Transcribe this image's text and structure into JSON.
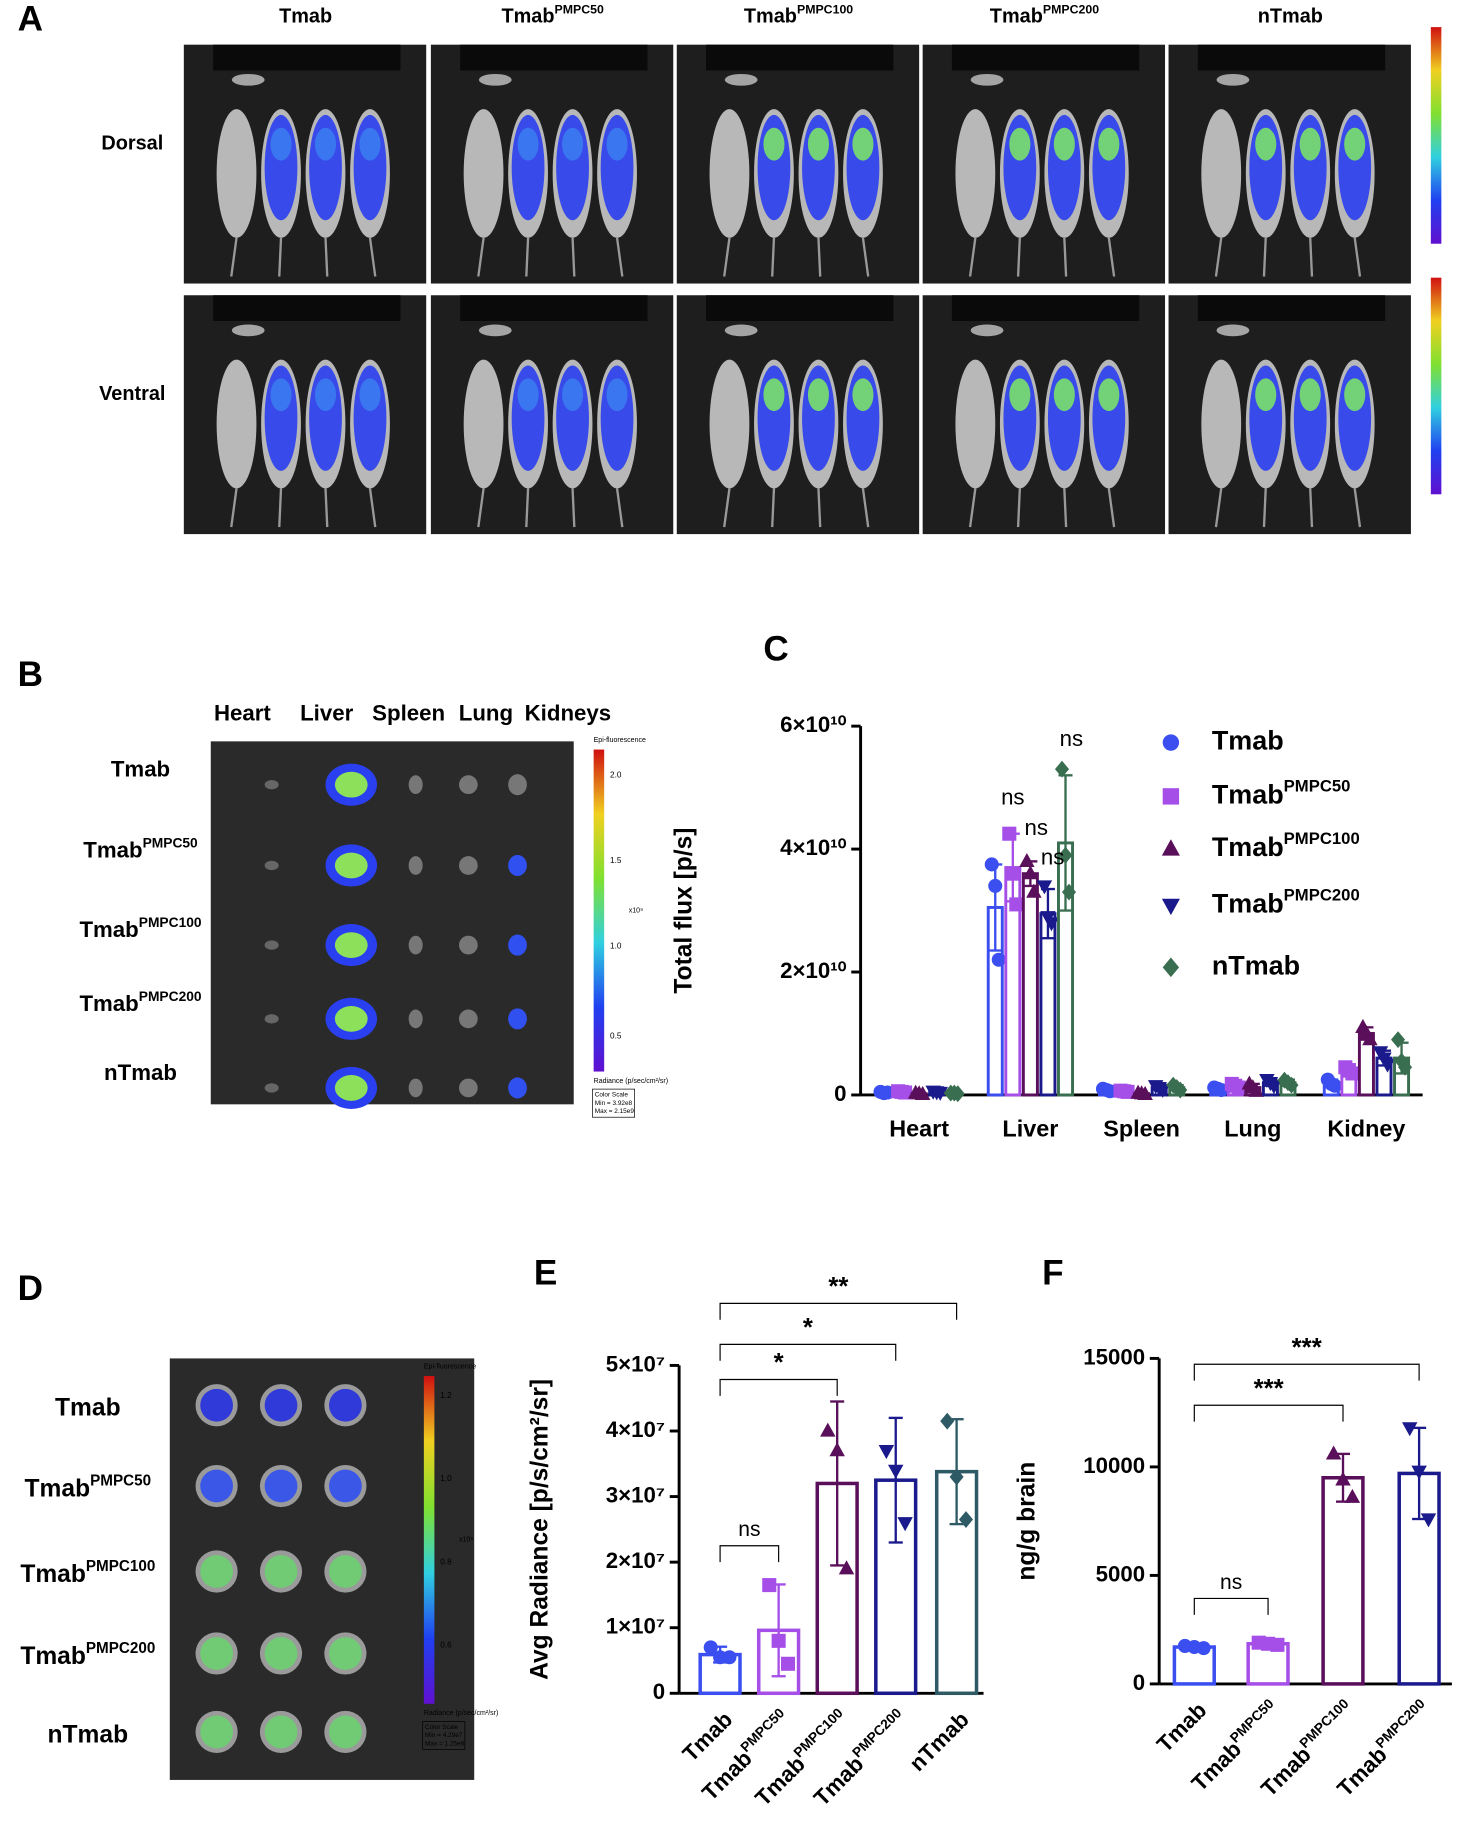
{
  "panel_labels": [
    "A",
    "B",
    "C",
    "D",
    "E",
    "F"
  ],
  "panel_a": {
    "columns": [
      [
        "Tmab"
      ],
      [
        "Tmab",
        "PMPC50"
      ],
      [
        "Tmab",
        "PMPC100"
      ],
      [
        "Tmab",
        "PMPC200"
      ],
      [
        "nTmab"
      ]
    ],
    "rows": [
      "Dorsal",
      "Ventral"
    ]
  },
  "panel_b": {
    "organs": [
      "Heart",
      "Liver",
      "Spleen",
      "Lung",
      "Kidneys"
    ],
    "rows": [
      [
        "Tmab"
      ],
      [
        "Tmab",
        "PMPC50"
      ],
      [
        "Tmab",
        "PMPC100"
      ],
      [
        "Tmab",
        "PMPC200"
      ],
      [
        "nTmab"
      ]
    ],
    "colorbar": {
      "title": "Epi-fluorescence",
      "ticks": [
        "2.0",
        "1.5",
        "1.0",
        "0.5"
      ],
      "unit": "x10⁹",
      "radiance": "Radiance (p/sec/cm²/sr)",
      "scale": [
        "Color Scale",
        "Min = 3.92e8",
        "Max = 2.15e9"
      ]
    }
  },
  "panel_d": {
    "rows": [
      [
        "Tmab"
      ],
      [
        "Tmab",
        "PMPC50"
      ],
      [
        "Tmab",
        "PMPC100"
      ],
      [
        "Tmab",
        "PMPC200"
      ],
      [
        "nTmab"
      ]
    ],
    "colorbar": {
      "title": "Epi-fluorescence",
      "ticks": [
        "1.2",
        "1.0",
        "0.8",
        "0.6"
      ],
      "unit": "x10⁸",
      "radiance": "Radiance (p/sec/cm²/sr)",
      "scale": [
        "Color Scale",
        "Min = 4.29e7",
        "Max = 1.25e8"
      ]
    }
  },
  "chart_data": [
    {
      "type": "grouped_bar",
      "categories": [
        "Heart",
        "Liver",
        "Spleen",
        "Lung",
        "Kidney"
      ],
      "ylabel": "Total flux [p/s]",
      "ylim": [
        0,
        60000000000.0
      ],
      "yticks": [
        0,
        {
          "value": 20000000000.0,
          "label": "2×10¹⁰"
        },
        {
          "value": 40000000000.0,
          "label": "4×10¹⁰"
        },
        {
          "value": 60000000000.0,
          "label": "6×10¹⁰"
        }
      ],
      "annotations": [
        "ns",
        "ns",
        "ns",
        "ns"
      ],
      "series": [
        {
          "name": [
            "Tmab"
          ],
          "color": "#3b4ef0",
          "marker": "circle",
          "values": [
            400000000.0,
            30500000000.0,
            800000000.0,
            1000000000.0,
            2000000000.0
          ],
          "errors": [
            200000000.0,
            7000000000.0,
            300000000.0,
            500000000.0,
            500000000.0
          ],
          "points": [
            [
              500000000.0,
              300000000.0,
              400000000.0
            ],
            [
              37500000000.0,
              34000000000.0,
              22000000000.0
            ],
            [
              1000000000.0,
              800000000.0,
              600000000.0
            ],
            [
              1200000000.0,
              1000000000.0,
              800000000.0
            ],
            [
              2500000000.0,
              1800000000.0,
              1500000000.0
            ]
          ]
        },
        {
          "name": [
            "Tmab",
            "PMPC50"
          ],
          "color": "#a64ee8",
          "marker": "square",
          "values": [
            500000000.0,
            37000000000.0,
            600000000.0,
            1500000000.0,
            4000000000.0
          ],
          "errors": [
            200000000.0,
            5500000000.0,
            300000000.0,
            500000000.0,
            1000000000.0
          ],
          "points": [
            [
              600000000.0,
              500000000.0,
              400000000.0
            ],
            [
              42500000000.0,
              36000000000.0,
              31000000000.0
            ],
            [
              700000000.0,
              600000000.0,
              500000000.0
            ],
            [
              1800000000.0,
              1500000000.0,
              1200000000.0
            ],
            [
              4500000000.0,
              4000000000.0,
              3500000000.0
            ]
          ]
        },
        {
          "name": [
            "Tmab",
            "PMPC100"
          ],
          "color": "#5a0f5a",
          "marker": "triangle-up",
          "values": [
            200000000.0,
            36000000000.0,
            200000000.0,
            1200000000.0,
            10000000000.0
          ],
          "errors": [
            100000000.0,
            2000000000.0,
            100000000.0,
            600000000.0,
            1000000000.0
          ],
          "points": [
            [
              300000000.0,
              200000000.0,
              100000000.0
            ],
            [
              38000000000.0,
              36000000000.0,
              33000000000.0
            ],
            [
              300000000.0,
              200000000.0,
              100000000.0
            ],
            [
              1800000000.0,
              1200000000.0,
              600000000.0
            ],
            [
              11000000000.0,
              10000000000.0,
              9000000000.0
            ]
          ]
        },
        {
          "name": [
            "Tmab",
            "PMPC200"
          ],
          "color": "#1a1a8c",
          "marker": "triangle-down",
          "values": [
            500000000.0,
            29500000000.0,
            1200000000.0,
            2000000000.0,
            6000000000.0
          ],
          "errors": [
            200000000.0,
            4000000000.0,
            300000000.0,
            500000000.0,
            1200000000.0
          ],
          "points": [
            [
              600000000.0,
              500000000.0,
              400000000.0
            ],
            [
              34000000000.0,
              29000000000.0,
              28000000000.0
            ],
            [
              1500000000.0,
              1200000000.0,
              900000000.0
            ],
            [
              2500000000.0,
              2000000000.0,
              1500000000.0
            ],
            [
              7000000000.0,
              6000000000.0,
              5000000000.0
            ]
          ]
        },
        {
          "name": [
            "nTmab"
          ],
          "color": "#3a6e50",
          "marker": "diamond",
          "values": [
            300000000.0,
            41000000000.0,
            1200000000.0,
            2000000000.0,
            6000000000.0
          ],
          "errors": [
            100000000.0,
            11000000000.0,
            400000000.0,
            500000000.0,
            2500000000.0
          ],
          "points": [
            [
              300000000.0,
              300000000.0,
              200000000.0
            ],
            [
              53000000000.0,
              39000000000.0,
              33000000000.0
            ],
            [
              1600000000.0,
              1200000000.0,
              800000000.0
            ],
            [
              2400000000.0,
              2000000000.0,
              1600000000.0
            ],
            [
              9000000000.0,
              5500000000.0,
              4500000000.0
            ]
          ]
        }
      ]
    },
    {
      "type": "bar",
      "categories": [
        [
          "Tmab"
        ],
        [
          "Tmab",
          "PMPC50"
        ],
        [
          "Tmab",
          "PMPC100"
        ],
        [
          "Tmab",
          "PMPC200"
        ],
        [
          "nTmab"
        ]
      ],
      "ylabel": "Avg Radiance [p/s/cm²/sr]",
      "ylim": [
        0,
        50000000.0
      ],
      "yticks": [
        0,
        {
          "value": 10000000.0,
          "label": "1×10⁷"
        },
        {
          "value": 20000000.0,
          "label": "2×10⁷"
        },
        {
          "value": 30000000.0,
          "label": "3×10⁷"
        },
        {
          "value": 40000000.0,
          "label": "4×10⁷"
        },
        {
          "value": 50000000.0,
          "label": "5×10⁷"
        }
      ],
      "colors": [
        "#3b4ef0",
        "#a64ee8",
        "#5a0f5a",
        "#1a1a8c",
        "#2e5a66"
      ],
      "markers": [
        "circle",
        "square",
        "triangle-up",
        "triangle-down",
        "diamond"
      ],
      "values": [
        5900000.0,
        9600000.0,
        32000000.0,
        32500000.0,
        33800000.0
      ],
      "errors": [
        1200000.0,
        7000000.0,
        12500000.0,
        9500000.0,
        8000000.0
      ],
      "points": [
        [
          7000000.0,
          5500000.0,
          5500000.0
        ],
        [
          16500000.0,
          8000000.0,
          4500000.0
        ],
        [
          40000000.0,
          37000000.0,
          19000000.0
        ],
        [
          37000000.0,
          34000000.0,
          26000000.0
        ],
        [
          41500000.0,
          33000000.0,
          26500000.0
        ]
      ],
      "comparisons": [
        {
          "pair": [
            0,
            1
          ],
          "label": "ns"
        },
        {
          "pair": [
            0,
            2
          ],
          "label": "*"
        },
        {
          "pair": [
            0,
            3
          ],
          "label": "*"
        },
        {
          "pair": [
            0,
            4
          ],
          "label": "**"
        }
      ]
    },
    {
      "type": "bar",
      "categories": [
        [
          "Tmab"
        ],
        [
          "Tmab",
          "PMPC50"
        ],
        [
          "Tmab",
          "PMPC100"
        ],
        [
          "Tmab",
          "PMPC200"
        ]
      ],
      "ylabel": "ng/g brain",
      "ylim": [
        0,
        15000
      ],
      "yticks": [
        0,
        5000,
        10000,
        15000
      ],
      "colors": [
        "#3b4ef0",
        "#a64ee8",
        "#5a0f5a",
        "#1a1a8c"
      ],
      "markers": [
        "circle",
        "square",
        "triangle-up",
        "triangle-down"
      ],
      "values": [
        1700,
        1850,
        9500,
        9700
      ],
      "errors": [
        60,
        120,
        1100,
        2100
      ],
      "points": [
        [
          1750,
          1700,
          1650
        ],
        [
          1900,
          1850,
          1800
        ],
        [
          10600,
          9400,
          8600
        ],
        [
          11800,
          9800,
          7600
        ]
      ],
      "comparisons": [
        {
          "pair": [
            0,
            1
          ],
          "label": "ns"
        },
        {
          "pair": [
            0,
            2
          ],
          "label": "***"
        },
        {
          "pair": [
            0,
            3
          ],
          "label": "***"
        }
      ]
    }
  ]
}
